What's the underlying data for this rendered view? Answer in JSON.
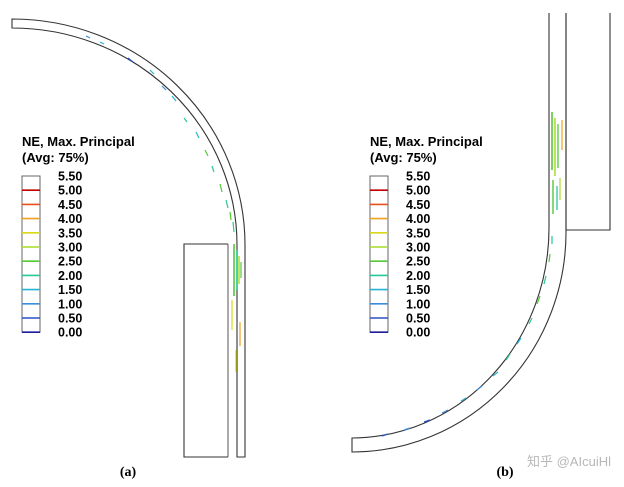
{
  "legend": {
    "title_line1": "NE, Max. Principal",
    "title_line2": "(Avg: 75%)",
    "ticks": [
      "5.50",
      "5.00",
      "4.50",
      "4.00",
      "3.50",
      "3.00",
      "2.50",
      "2.00",
      "1.50",
      "1.00",
      "0.50",
      "0.00"
    ],
    "colors": [
      "#c00000",
      "#e8501e",
      "#f0a020",
      "#d8d818",
      "#a6dc28",
      "#56c83c",
      "#28c898",
      "#28b4d2",
      "#3c8cdc",
      "#2850c8",
      "#1c1c9c"
    ]
  },
  "panels": [
    {
      "caption": "(a)"
    },
    {
      "caption": "(b)"
    }
  ],
  "watermark": "知乎 @AIcuiHl"
}
